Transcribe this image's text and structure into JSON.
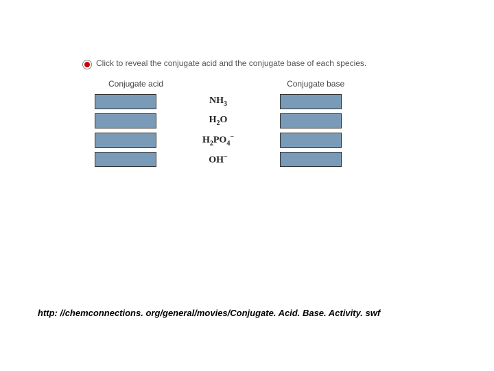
{
  "instruction": "Click to reveal the conjugate acid and the conjugate base of each species.",
  "headers": {
    "acid": "Conjugate acid",
    "base": "Conjugate base"
  },
  "species": [
    "NH3",
    "H2O",
    "H2PO4-",
    "OH-"
  ],
  "species_html": [
    "NH<sub>3</sub>",
    "H<sub>2</sub>O",
    "H<sub>2</sub>PO<sub>4</sub><sup>−</sup>",
    "OH<sup>−</sup>"
  ],
  "slot_color": "#7a9bb8",
  "slot_border_color": "#333333",
  "radio_color": "#cc0000",
  "instruction_color": "#555555",
  "header_color": "#444444",
  "species_color": "#222222",
  "header_fontsize": 12,
  "instruction_fontsize": 12,
  "species_fontsize": 14,
  "caption_fontsize": 13,
  "caption": "http: //chemconnections. org/general/movies/Conjugate. Acid. Base. Activity. swf"
}
